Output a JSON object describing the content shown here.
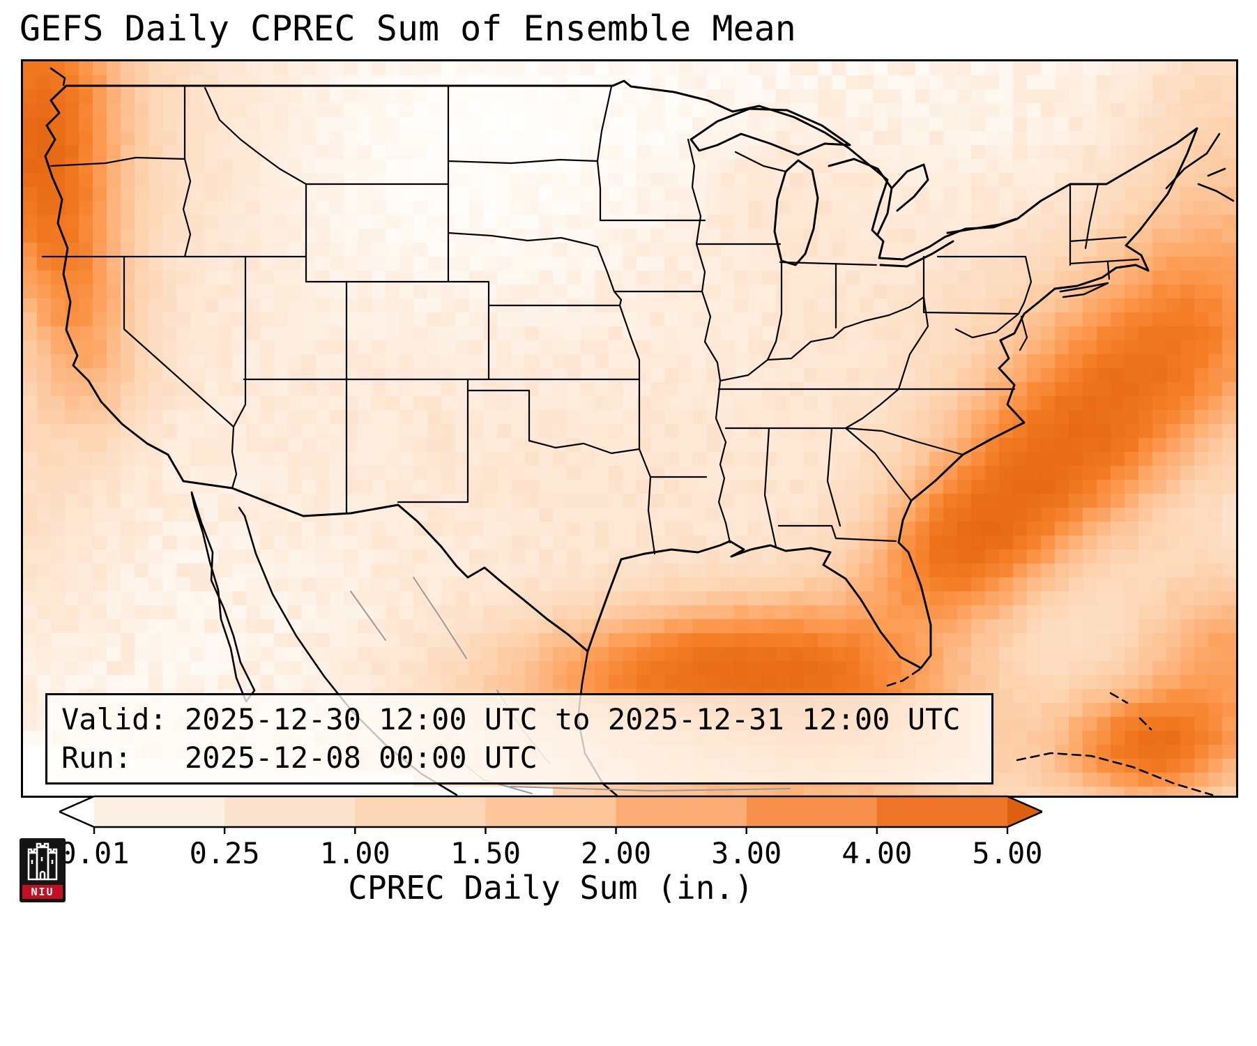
{
  "title": "GEFS Daily CPREC Sum of Ensemble Mean",
  "info_box": {
    "valid_line": "Valid: 2025-12-30 12:00 UTC to 2025-12-31 12:00 UTC",
    "run_line": "Run:   2025-12-08 00:00 UTC"
  },
  "colorbar": {
    "label": "CPREC Daily Sum (in.)",
    "ticks": [
      "0.01",
      "0.25",
      "1.00",
      "1.50",
      "2.00",
      "3.00",
      "4.00",
      "5.00"
    ],
    "segment_colors": [
      "#fcefe3",
      "#fce3cd",
      "#fbd6b4",
      "#fcc59a",
      "#fbac74",
      "#f8914b",
      "#ee7527"
    ],
    "under_color": "#ffffff",
    "over_color": "#dd5f10"
  },
  "chart_data": {
    "type": "heatmap",
    "title": "GEFS Daily CPREC Sum of Ensemble Mean",
    "colorbar_label": "CPREC Daily Sum (in.)",
    "levels_in": [
      0.01,
      0.25,
      1.0,
      1.5,
      2.0,
      3.0,
      4.0,
      5.0
    ],
    "valid": "2025-12-30 12:00 UTC to 2025-12-31 12:00 UTC",
    "run": "2025-12-08 00:00 UTC"
  },
  "logo": {
    "text": "NIU",
    "accent": "#c30f22",
    "bg": "#141414"
  }
}
